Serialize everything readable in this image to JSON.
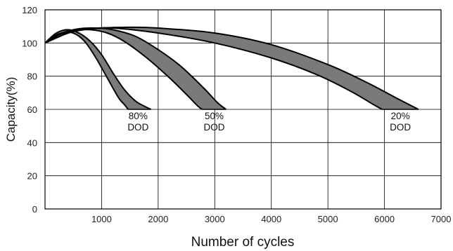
{
  "chart_data": {
    "type": "area",
    "xlabel": "Number of cycles",
    "ylabel": "Capacity(%)",
    "xlim": [
      0,
      7000
    ],
    "ylim": [
      0,
      120
    ],
    "x_ticks": [
      1000,
      2000,
      3000,
      4000,
      5000,
      6000,
      7000
    ],
    "y_ticks": [
      0,
      20,
      40,
      60,
      80,
      100,
      120
    ],
    "grid": true,
    "legend": "none",
    "fill_color": "#7a7a7a",
    "line_color": "#000000",
    "series": [
      {
        "label_line1": "80%",
        "label_line2": "DOD",
        "upper": [
          [
            0,
            100
          ],
          [
            200,
            106
          ],
          [
            400,
            108
          ],
          [
            600,
            106
          ],
          [
            800,
            101
          ],
          [
            1000,
            93
          ],
          [
            1200,
            82
          ],
          [
            1400,
            72
          ],
          [
            1600,
            65
          ],
          [
            1750,
            62
          ],
          [
            1870,
            60
          ]
        ],
        "lower": [
          [
            0,
            100
          ],
          [
            150,
            104
          ],
          [
            300,
            106
          ],
          [
            500,
            106
          ],
          [
            700,
            101
          ],
          [
            900,
            91
          ],
          [
            1100,
            79
          ],
          [
            1300,
            67
          ],
          [
            1400,
            63
          ],
          [
            1470,
            60
          ]
        ]
      },
      {
        "label_line1": "50%",
        "label_line2": "DOD",
        "upper": [
          [
            0,
            100
          ],
          [
            300,
            106
          ],
          [
            600,
            108.6
          ],
          [
            900,
            109
          ],
          [
            1200,
            108
          ],
          [
            1600,
            104
          ],
          [
            2000,
            96
          ],
          [
            2400,
            86
          ],
          [
            2800,
            73
          ],
          [
            3050,
            64
          ],
          [
            3200,
            60
          ]
        ],
        "lower": [
          [
            0,
            100
          ],
          [
            250,
            105
          ],
          [
            500,
            107.5
          ],
          [
            800,
            108
          ],
          [
            1100,
            106
          ],
          [
            1400,
            101
          ],
          [
            1800,
            91
          ],
          [
            2200,
            79
          ],
          [
            2500,
            69
          ],
          [
            2700,
            62
          ],
          [
            2780,
            60
          ]
        ]
      },
      {
        "label_line1": "20%",
        "label_line2": "DOD",
        "upper": [
          [
            0,
            100
          ],
          [
            500,
            107
          ],
          [
            1000,
            109
          ],
          [
            1500,
            109.5
          ],
          [
            2000,
            109
          ],
          [
            3000,
            106
          ],
          [
            4000,
            99
          ],
          [
            5000,
            87
          ],
          [
            5700,
            76
          ],
          [
            6200,
            67
          ],
          [
            6600,
            60
          ]
        ],
        "lower": [
          [
            0,
            100
          ],
          [
            400,
            106
          ],
          [
            800,
            108.5
          ],
          [
            1200,
            109
          ],
          [
            2000,
            106
          ],
          [
            3000,
            100
          ],
          [
            4000,
            91
          ],
          [
            4800,
            81
          ],
          [
            5400,
            71
          ],
          [
            5800,
            63
          ],
          [
            5960,
            60
          ]
        ]
      }
    ]
  }
}
